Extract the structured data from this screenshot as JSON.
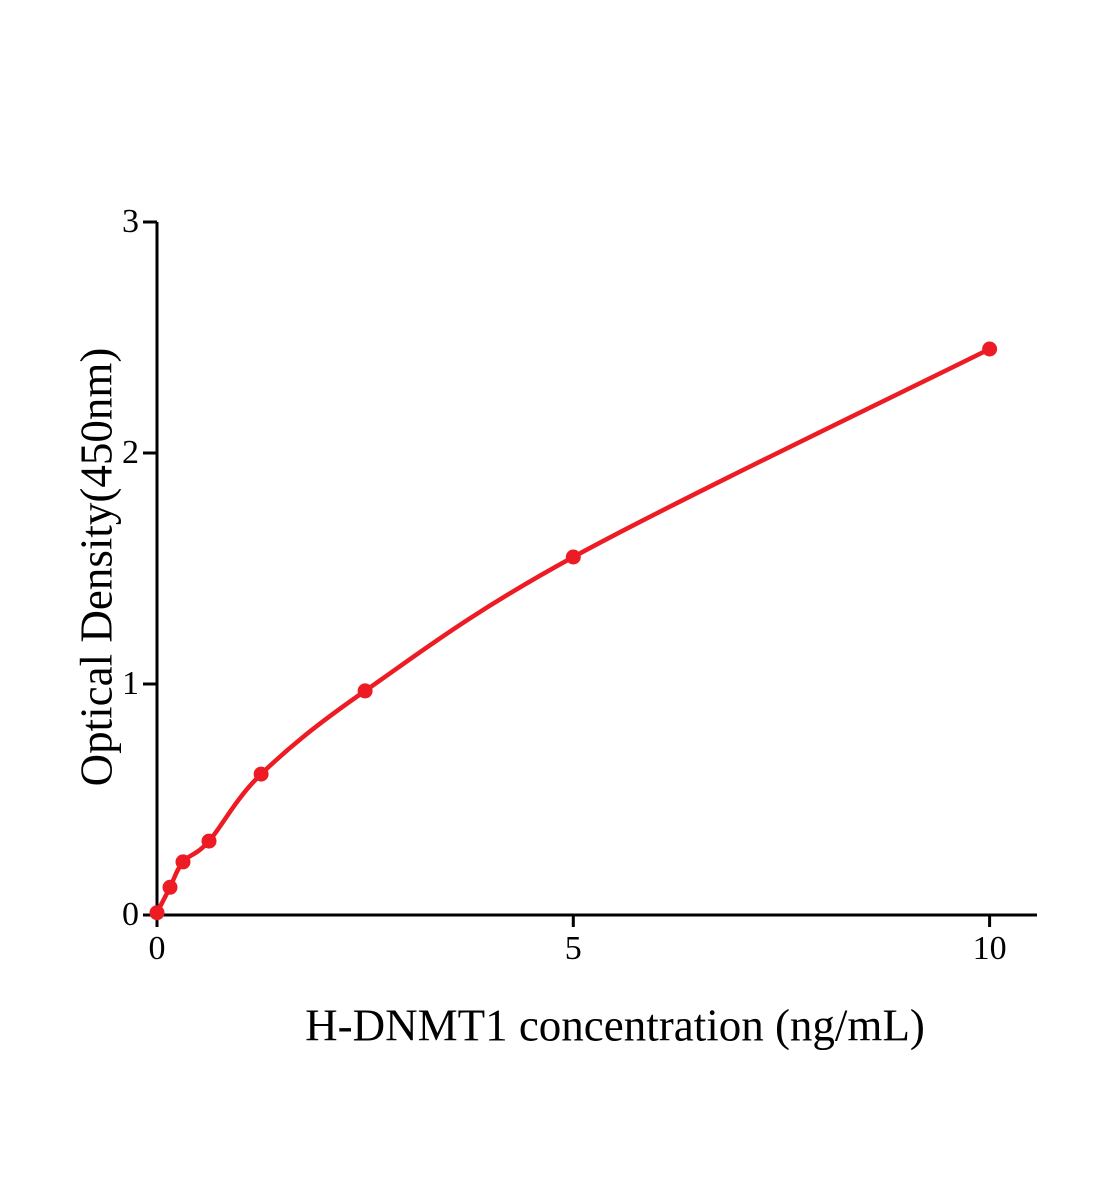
{
  "chart_data": {
    "type": "line",
    "title": "",
    "xlabel": "H-DNMT1 concentration (ng/mL)",
    "ylabel": "Optical Density(450nm)",
    "x": [
      0,
      0.156,
      0.3125,
      0.625,
      1.25,
      2.5,
      5,
      10
    ],
    "y": [
      0.01,
      0.12,
      0.23,
      0.32,
      0.61,
      0.97,
      1.55,
      2.45
    ],
    "x_ticks": [
      0,
      5,
      10
    ],
    "x_tick_labels": [
      "0",
      "5",
      "10"
    ],
    "y_ticks": [
      0,
      1,
      2,
      3
    ],
    "y_tick_labels": [
      "0",
      "1",
      "2",
      "3"
    ],
    "xlim": [
      0,
      10.57
    ],
    "ylim": [
      0,
      3
    ],
    "grid": false,
    "legend": false,
    "line_color": "#ed1c24",
    "marker_color": "#ed1c24",
    "axis_color": "#000000"
  }
}
